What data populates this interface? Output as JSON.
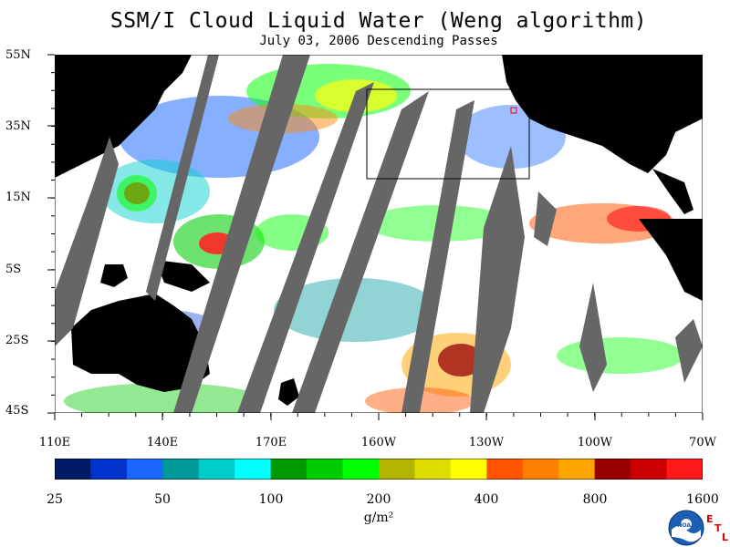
{
  "title": "SSM/I Cloud Liquid Water (Weng algorithm)",
  "subtitle": "July 03, 2006  Descending Passes",
  "lat_labels": [
    "55N",
    "35N",
    "15N",
    "5S",
    "25S",
    "45S"
  ],
  "lon_labels": [
    "110E",
    "140E",
    "170E",
    "160W",
    "130W",
    "100W",
    "70W"
  ],
  "colorbar": {
    "tick_labels": [
      "25",
      "50",
      "100",
      "200",
      "400",
      "800",
      "1600"
    ],
    "units": "g/m²",
    "colors": [
      "#001a66",
      "#0033cc",
      "#1a66ff",
      "#009999",
      "#00cccc",
      "#00ffff",
      "#009900",
      "#00cc00",
      "#00ff00",
      "#b3b300",
      "#dddd00",
      "#ffff00",
      "#ff5500",
      "#ff8000",
      "#ffa500",
      "#990000",
      "#cc0000",
      "#ff1a1a"
    ]
  },
  "logo": {
    "text": "NOAA",
    "badge": "ETL"
  }
}
